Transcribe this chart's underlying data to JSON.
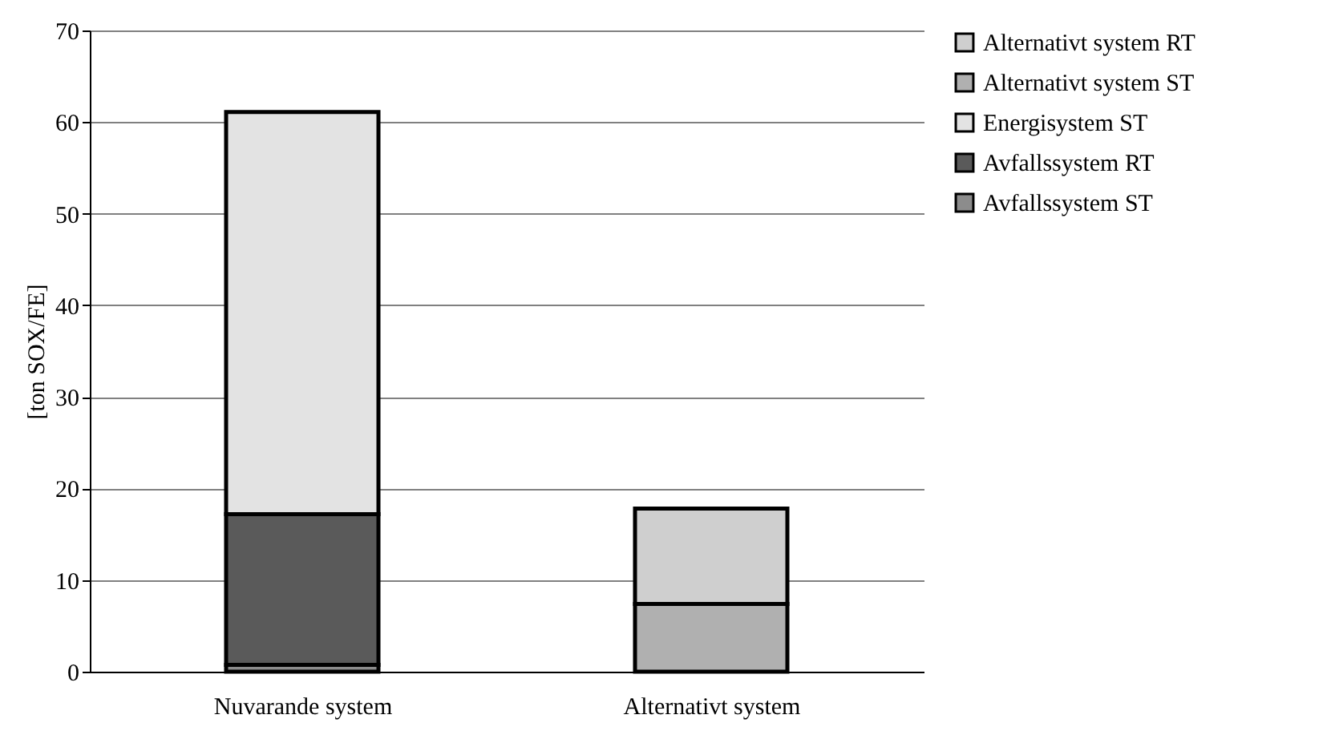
{
  "chart_data": {
    "type": "bar",
    "stacked": true,
    "ylabel": "[ton SOX/FE]",
    "categories": [
      "Nuvarande system",
      "Alternativt system"
    ],
    "series": [
      {
        "name": "Avfallssystem ST",
        "color": "#8c8c8c",
        "values": [
          0.75,
          null
        ]
      },
      {
        "name": "Avfallssystem RT",
        "color": "#5a5a5a",
        "values": [
          16.45,
          null
        ]
      },
      {
        "name": "Energisystem ST",
        "color": "#e3e3e3",
        "values": [
          43.9,
          null
        ]
      },
      {
        "name": "Alternativt system ST",
        "color": "#b0b0b0",
        "values": [
          null,
          7.4
        ]
      },
      {
        "name": "Alternativt system RT",
        "color": "#cfcfcf",
        "values": [
          null,
          10.4
        ]
      }
    ],
    "ylim": [
      0,
      70
    ],
    "yticks": [
      0,
      10,
      20,
      30,
      40,
      50,
      60,
      70
    ],
    "grid": "y",
    "legend": "right"
  }
}
